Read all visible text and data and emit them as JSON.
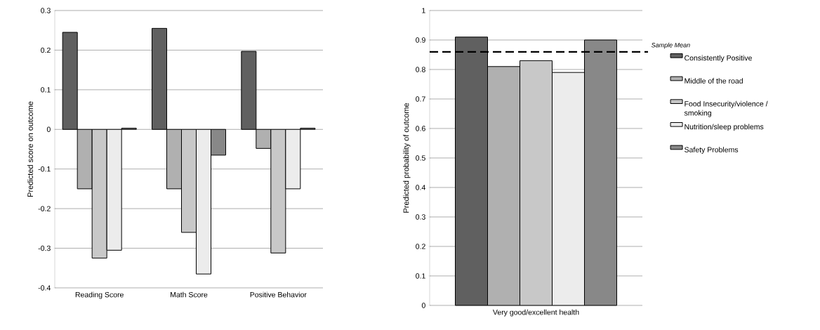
{
  "chart_data": [
    {
      "type": "bar",
      "ylabel": "Predicted score on outcome",
      "categories": [
        "Reading Score",
        "Math Score",
        "Positive Behavior"
      ],
      "series": [
        {
          "color": "#606060",
          "values": [
            0.245,
            0.255,
            0.197
          ]
        },
        {
          "color": "#b0b0b0",
          "values": [
            -0.15,
            -0.15,
            -0.048
          ]
        },
        {
          "color": "#c8c8c8",
          "values": [
            -0.325,
            -0.26,
            -0.312
          ]
        },
        {
          "color": "#ececec",
          "values": [
            -0.305,
            -0.365,
            -0.15
          ]
        },
        {
          "color": "#888888",
          "values": [
            0.003,
            -0.065,
            0.003
          ]
        }
      ],
      "ylim": [
        -0.4,
        0.3
      ],
      "yticks": [
        -0.4,
        -0.3,
        -0.2,
        -0.1,
        0,
        0.1,
        0.2,
        0.3
      ],
      "grid": "y",
      "legend": false
    },
    {
      "type": "bar",
      "ylabel": "Predicted probability of outcome",
      "categories": [
        "Very good/excellent health"
      ],
      "series": [
        {
          "name": "Consistently Positive",
          "color": "#606060",
          "values": [
            0.91
          ]
        },
        {
          "name": "Middle of the road",
          "color": "#b0b0b0",
          "values": [
            0.81
          ]
        },
        {
          "name": "Food Insecurity/violence / smoking",
          "color": "#c8c8c8",
          "values": [
            0.83
          ]
        },
        {
          "name": "Nutrition/sleep problems",
          "color": "#ececec",
          "values": [
            0.79
          ]
        },
        {
          "name": "Safety Problems",
          "color": "#888888",
          "values": [
            0.9
          ]
        }
      ],
      "ylim": [
        0,
        1
      ],
      "yticks": [
        0,
        0.1,
        0.2,
        0.3,
        0.4,
        0.5,
        0.6,
        0.7,
        0.8,
        0.9,
        1
      ],
      "grid": "y",
      "legend": "right",
      "ref_lines": [
        {
          "axis": "y",
          "value": 0.86,
          "label": "Sample Mean",
          "line_style": "dashed"
        }
      ]
    }
  ]
}
